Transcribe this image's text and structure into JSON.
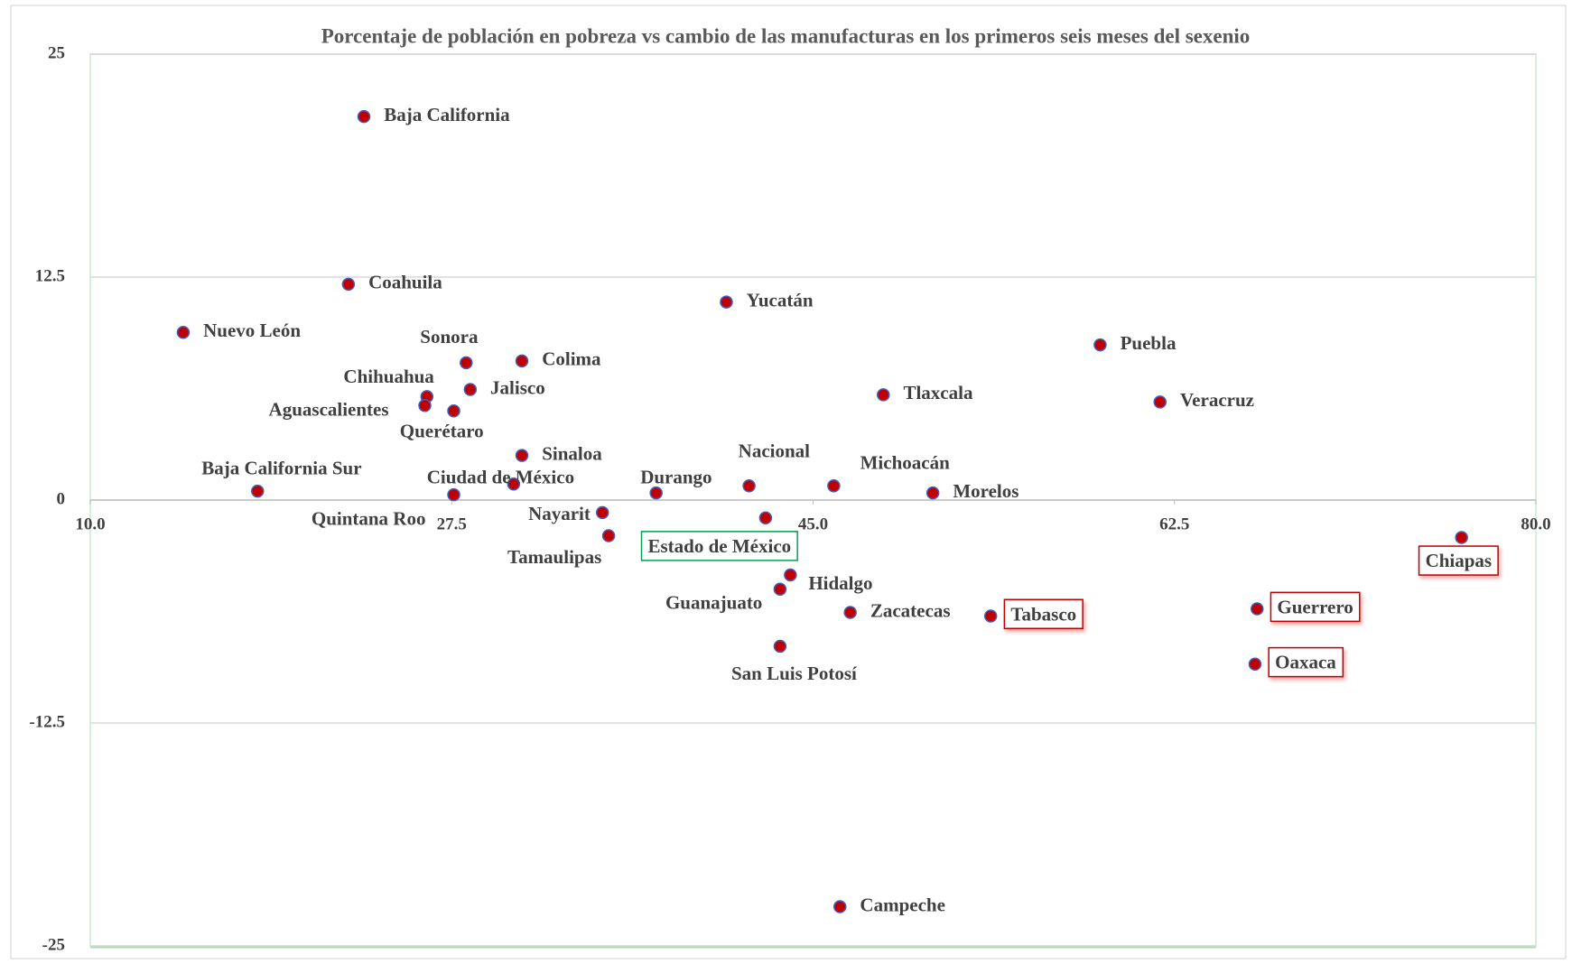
{
  "chart_data": {
    "type": "scatter",
    "title": "Porcentaje de población en pobreza vs cambio de las manufacturas en los primeros seis meses del sexenio",
    "xlim": [
      10,
      80
    ],
    "ylim": [
      -25,
      25
    ],
    "xticks": [
      {
        "value": 10,
        "label": "10.0"
      },
      27.5,
      {
        "value": 45,
        "label": "45.0"
      },
      62.5,
      {
        "value": 80,
        "label": "80.0"
      }
    ],
    "yticks": [
      25,
      12.5,
      0,
      -12.5,
      -25
    ],
    "grid": true,
    "marker_color": "#c00000",
    "marker_edge": "#4060c0",
    "points": [
      {
        "name": "Baja California",
        "x": 23.25,
        "y": 21.5
      },
      {
        "name": "Coahuila",
        "x": 22.5,
        "y": 12.1
      },
      {
        "name": "Nuevo León",
        "x": 14.5,
        "y": 9.4
      },
      {
        "name": "Sonora",
        "x": 28.2,
        "y": 7.7
      },
      {
        "name": "Colima",
        "x": 30.9,
        "y": 7.8
      },
      {
        "name": "Chihuahua",
        "x": 26.3,
        "y": 5.8
      },
      {
        "name": "Jalisco",
        "x": 28.4,
        "y": 6.2
      },
      {
        "name": "Aguascalientes",
        "x": 26.2,
        "y": 5.3
      },
      {
        "name": "Querétaro",
        "x": 27.6,
        "y": 5.0
      },
      {
        "name": "Tlaxcala",
        "x": 48.4,
        "y": 5.9
      },
      {
        "name": "Puebla",
        "x": 58.9,
        "y": 8.7
      },
      {
        "name": "Veracruz",
        "x": 61.8,
        "y": 5.5
      },
      {
        "name": "Yucatán",
        "x": 40.8,
        "y": 11.1
      },
      {
        "name": "Sinaloa",
        "x": 30.9,
        "y": 2.5
      },
      {
        "name": "Baja California Sur",
        "x": 18.1,
        "y": 0.5
      },
      {
        "name": "Ciudad de México",
        "x": 30.5,
        "y": 0.9
      },
      {
        "name": "Quintana Roo",
        "x": 27.6,
        "y": 0.3
      },
      {
        "name": "Durango",
        "x": 37.4,
        "y": 0.4
      },
      {
        "name": "Nacional",
        "x": 41.9,
        "y": 0.8
      },
      {
        "name": "Michoacán",
        "x": 46.0,
        "y": 0.8
      },
      {
        "name": "Morelos",
        "x": 50.8,
        "y": 0.4
      },
      {
        "name": "Nayarit",
        "x": 34.8,
        "y": -0.7
      },
      {
        "name": "Tamaulipas",
        "x": 35.1,
        "y": -2.0
      },
      {
        "name": "Estado de México",
        "x": 42.7,
        "y": -1.0,
        "box": "#00a050"
      },
      {
        "name": "Hidalgo",
        "x": 43.9,
        "y": -4.2
      },
      {
        "name": "Guanajuato",
        "x": 43.4,
        "y": -5.0
      },
      {
        "name": "Zacatecas",
        "x": 46.8,
        "y": -6.3
      },
      {
        "name": "Tabasco",
        "x": 53.6,
        "y": -6.5,
        "box": "#c00000"
      },
      {
        "name": "San Luis Potosí",
        "x": 43.4,
        "y": -8.2
      },
      {
        "name": "Guerrero",
        "x": 66.5,
        "y": -6.1,
        "box": "#c00000"
      },
      {
        "name": "Oaxaca",
        "x": 66.4,
        "y": -9.2,
        "box": "#c00000"
      },
      {
        "name": "Chiapas",
        "x": 76.4,
        "y": -2.1,
        "box": "#c00000"
      },
      {
        "name": "Campeche",
        "x": 46.3,
        "y": -22.8
      }
    ]
  }
}
